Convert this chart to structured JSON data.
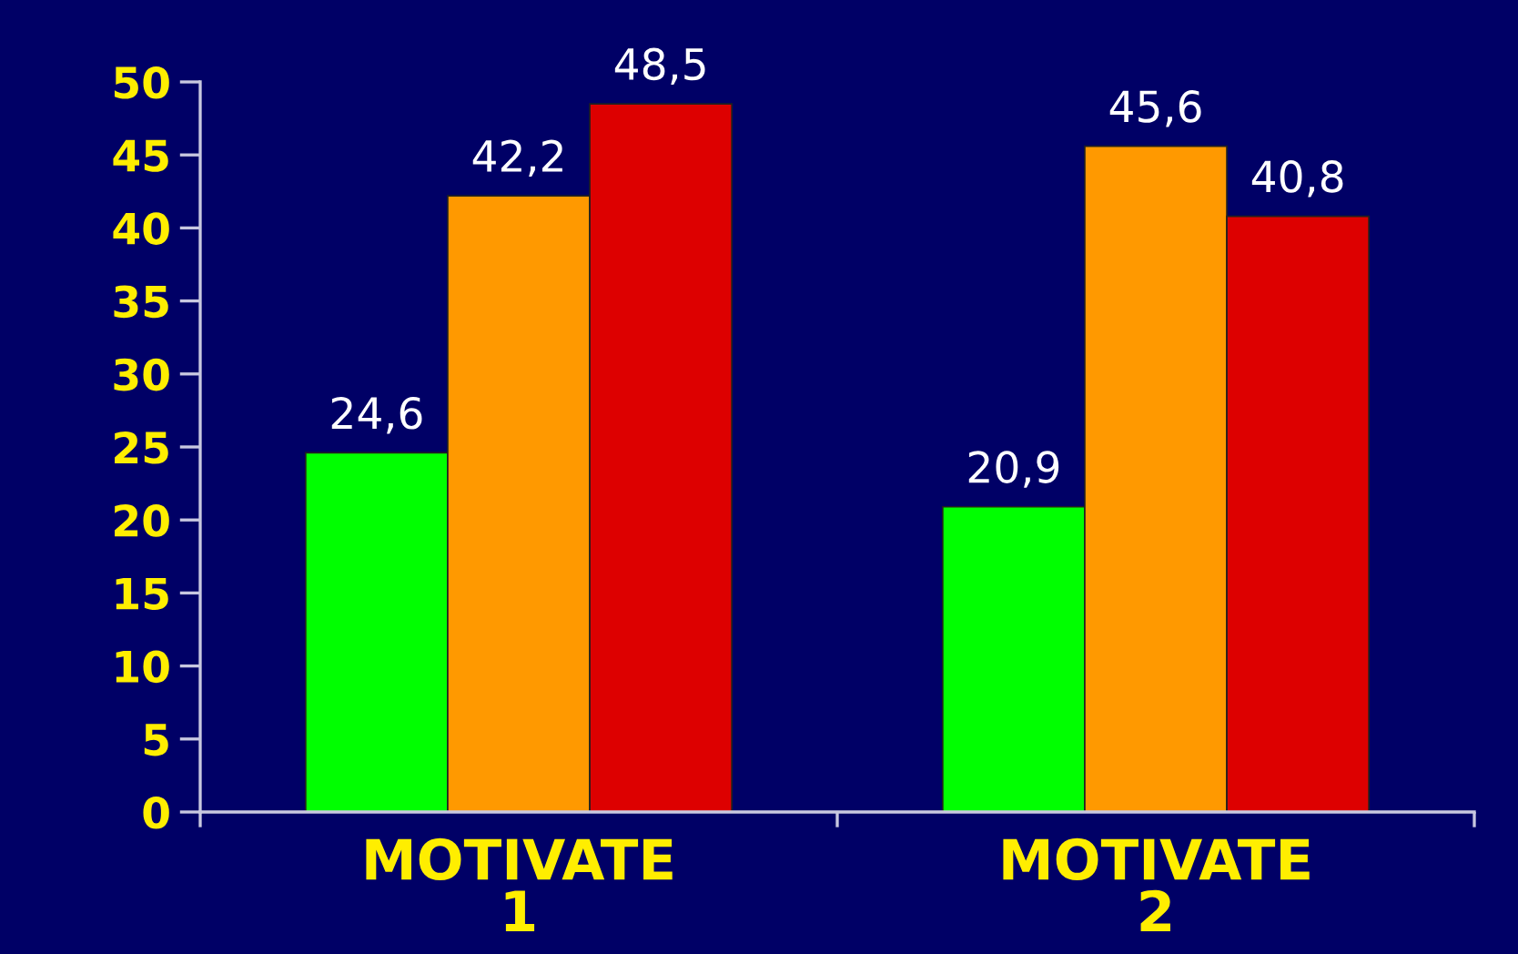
{
  "chart_data": {
    "type": "bar",
    "categories": [
      "MOTIVATE\n1",
      "MOTIVATE\n2"
    ],
    "series": [
      {
        "color": "#00ff00",
        "values": [
          24.6,
          20.9
        ],
        "value_labels": [
          "24,6",
          "20,9"
        ]
      },
      {
        "color": "#ff9900",
        "values": [
          42.2,
          45.6
        ],
        "value_labels": [
          "42,2",
          "45,6"
        ]
      },
      {
        "color": "#dd0000",
        "values": [
          48.5,
          40.8
        ],
        "value_labels": [
          "48,5",
          "40,8"
        ]
      }
    ],
    "ylim": [
      0,
      50
    ],
    "yticks": [
      0,
      5,
      10,
      15,
      20,
      25,
      30,
      35,
      40,
      45,
      50
    ],
    "grid": false
  }
}
